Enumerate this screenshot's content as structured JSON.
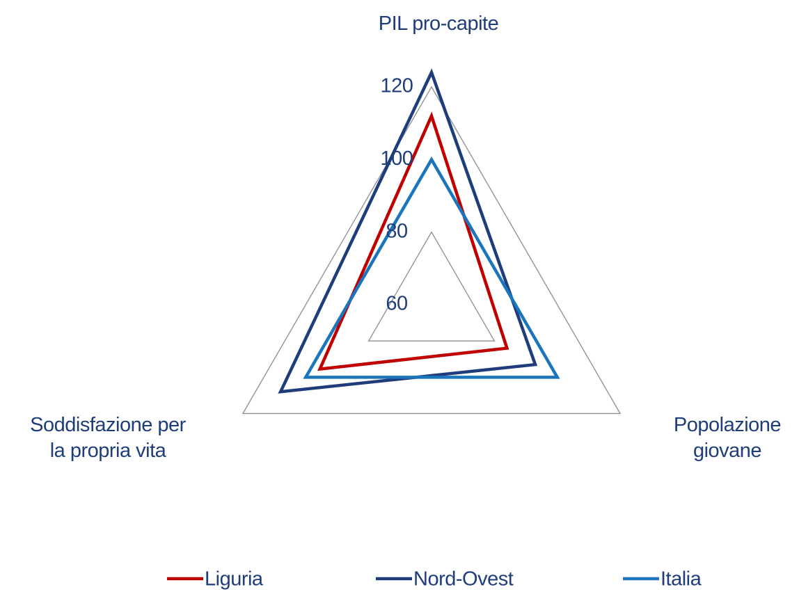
{
  "chart_data": {
    "type": "radar",
    "categories": [
      "PIL pro-capite",
      "Popolazione\ngiovane",
      "Soddisfazione per\nla propria vita"
    ],
    "series": [
      {
        "name": "Liguria",
        "color": "#c00000",
        "values": [
          112,
          84,
          95.5
        ]
      },
      {
        "name": "Nord-Ovest",
        "color": "#1f3d7a",
        "values": [
          124,
          93,
          108
        ]
      },
      {
        "name": "Italia",
        "color": "#1a75bc",
        "values": [
          100,
          100,
          100
        ]
      }
    ],
    "ylim": [
      60,
      120
    ],
    "yticks": [
      60,
      80,
      100,
      120
    ],
    "grid": true,
    "legend": "bottom"
  }
}
